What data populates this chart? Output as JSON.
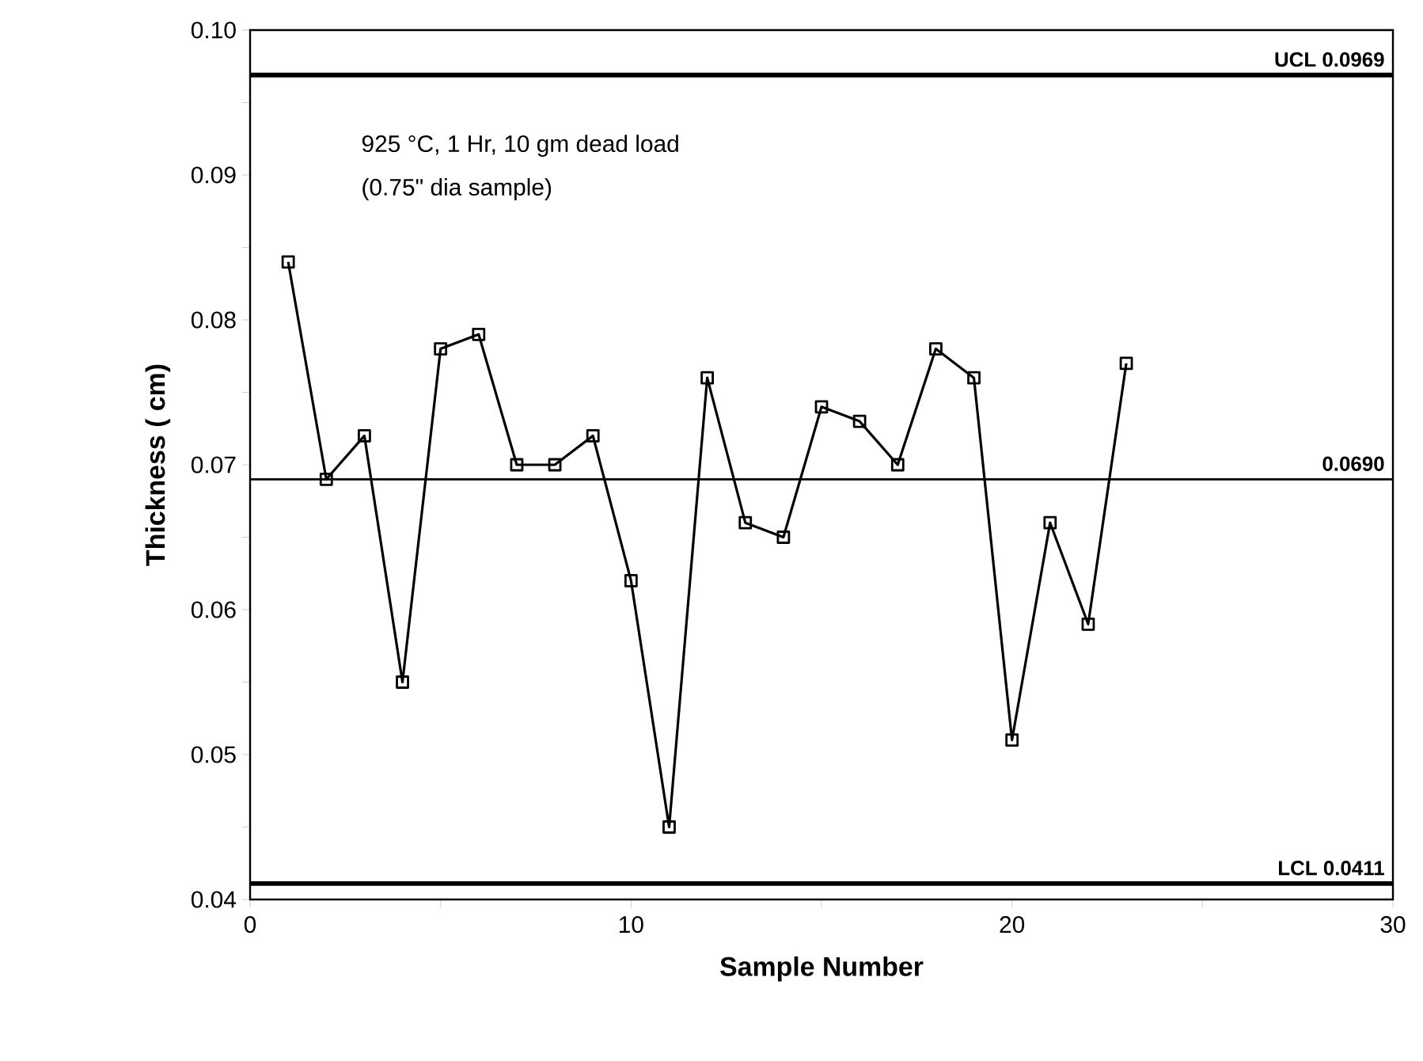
{
  "chart_data": {
    "type": "line",
    "xlabel": "Sample Number",
    "ylabel": "Thickness ( cm)",
    "x": [
      1,
      2,
      3,
      4,
      5,
      6,
      7,
      8,
      9,
      10,
      11,
      12,
      13,
      14,
      15,
      16,
      17,
      18,
      19,
      20,
      21,
      22,
      23
    ],
    "series": [
      {
        "color": "#000000",
        "values": [
          0.084,
          0.069,
          0.072,
          0.055,
          0.078,
          0.079,
          0.07,
          0.07,
          0.072,
          0.062,
          0.045,
          0.076,
          0.066,
          0.065,
          0.074,
          0.073,
          0.07,
          0.078,
          0.076,
          0.051,
          0.066,
          0.059,
          0.077
        ]
      }
    ],
    "marker": "square",
    "line_style": "solid",
    "xlim": [
      0,
      30
    ],
    "xticks": [
      0,
      {
        "value": 5,
        "label": null
      },
      10,
      {
        "value": 15,
        "label": null
      },
      20,
      {
        "value": 25,
        "label": null
      },
      30
    ],
    "ylim": [
      0.04,
      0.1
    ],
    "yticks": [
      0.04,
      {
        "value": 0.045,
        "label": null
      },
      0.05,
      {
        "value": 0.055,
        "label": null
      },
      0.06,
      {
        "value": 0.065,
        "label": null
      },
      0.07,
      {
        "value": 0.075,
        "label": null
      },
      0.08,
      {
        "value": 0.085,
        "label": null
      },
      0.09,
      {
        "value": 0.095,
        "label": null
      },
      {
        "value": 0.1,
        "label": "0.10"
      }
    ],
    "ref_lines": [
      {
        "axis": "y",
        "value": 0.0969,
        "label": "UCL 0.0969",
        "color": "#000000"
      },
      {
        "axis": "y",
        "value": 0.069,
        "label": "0.0690",
        "color": "#000000"
      },
      {
        "axis": "y",
        "value": 0.0411,
        "label": "LCL 0.0411",
        "color": "#000000"
      }
    ],
    "annotations": [
      "925 °C, 1 Hr, 10 gm dead load",
      "(0.75\" dia sample)"
    ],
    "grid": false
  }
}
